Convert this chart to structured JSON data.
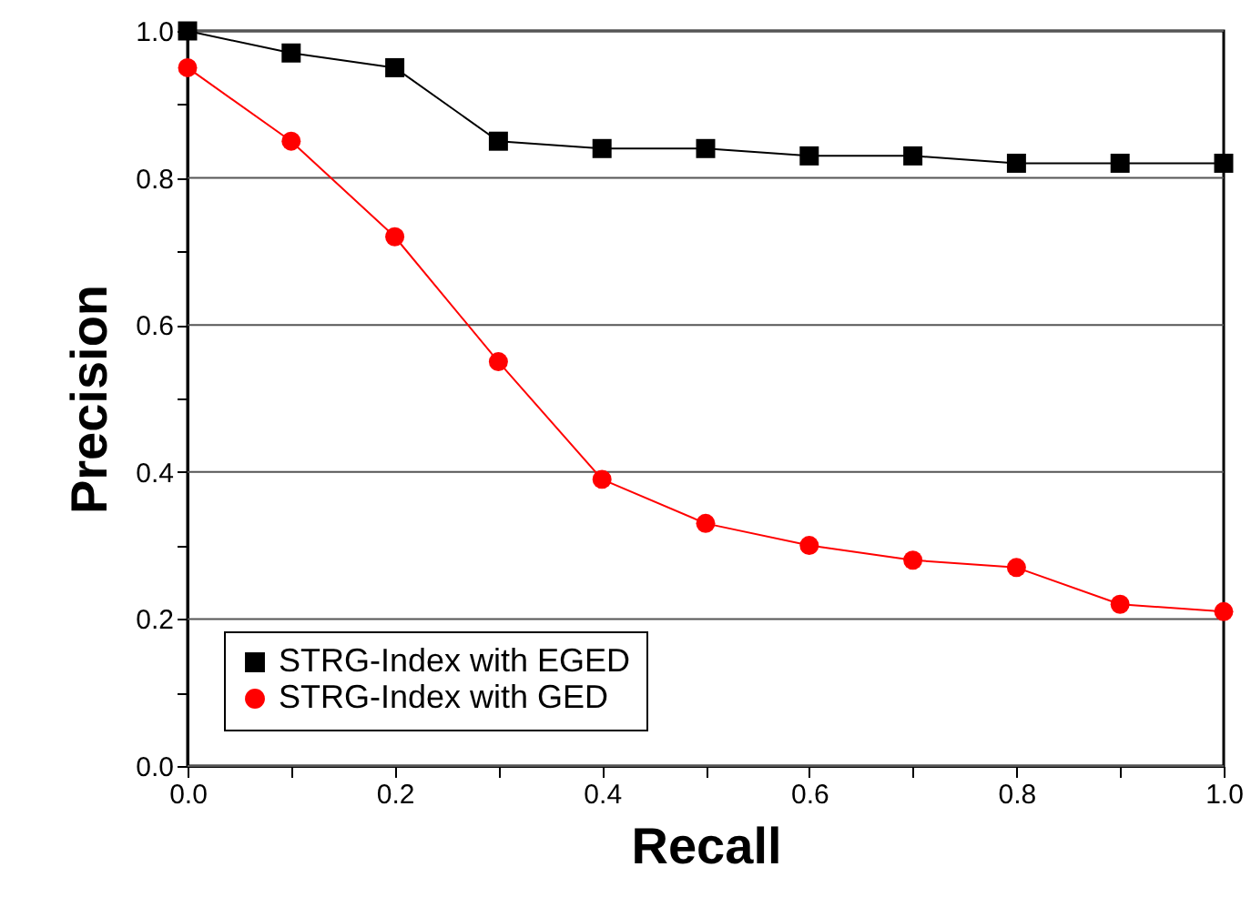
{
  "chart_data": {
    "type": "line",
    "xlabel": "Recall",
    "ylabel": "Precision",
    "x": [
      0.0,
      0.1,
      0.2,
      0.3,
      0.4,
      0.5,
      0.6,
      0.7,
      0.8,
      0.9,
      1.0
    ],
    "series": [
      {
        "name": "STRG-Index with EGED",
        "color": "#000000",
        "marker": "square",
        "values": [
          1.0,
          0.97,
          0.95,
          0.85,
          0.84,
          0.84,
          0.83,
          0.83,
          0.82,
          0.82,
          0.82
        ]
      },
      {
        "name": "STRG-Index with GED",
        "color": "#ff0000",
        "marker": "circle",
        "values": [
          0.95,
          0.85,
          0.72,
          0.55,
          0.39,
          0.33,
          0.3,
          0.28,
          0.27,
          0.22,
          0.21
        ]
      }
    ],
    "xlim": [
      0.0,
      1.0
    ],
    "ylim": [
      0.0,
      1.0
    ],
    "xticks": [
      {
        "value": 0.0,
        "label": "0.0"
      },
      {
        "value": 0.1,
        "label": null
      },
      {
        "value": 0.2,
        "label": "0.2"
      },
      {
        "value": 0.3,
        "label": null
      },
      {
        "value": 0.4,
        "label": "0.4"
      },
      {
        "value": 0.5,
        "label": null
      },
      {
        "value": 0.6,
        "label": "0.6"
      },
      {
        "value": 0.7,
        "label": null
      },
      {
        "value": 0.8,
        "label": "0.8"
      },
      {
        "value": 0.9,
        "label": null
      },
      {
        "value": 1.0,
        "label": "1.0"
      }
    ],
    "yticks": [
      {
        "value": 0.0,
        "label": "0.0"
      },
      {
        "value": 0.1,
        "label": null
      },
      {
        "value": 0.2,
        "label": "0.2"
      },
      {
        "value": 0.3,
        "label": null
      },
      {
        "value": 0.4,
        "label": "0.4"
      },
      {
        "value": 0.5,
        "label": null
      },
      {
        "value": 0.6,
        "label": "0.6"
      },
      {
        "value": 0.7,
        "label": null
      },
      {
        "value": 0.8,
        "label": "0.8"
      },
      {
        "value": 0.9,
        "label": null
      },
      {
        "value": 1.0,
        "label": "1.0"
      }
    ],
    "grid": "y",
    "legend": "bottom left",
    "line_style": "solid"
  }
}
